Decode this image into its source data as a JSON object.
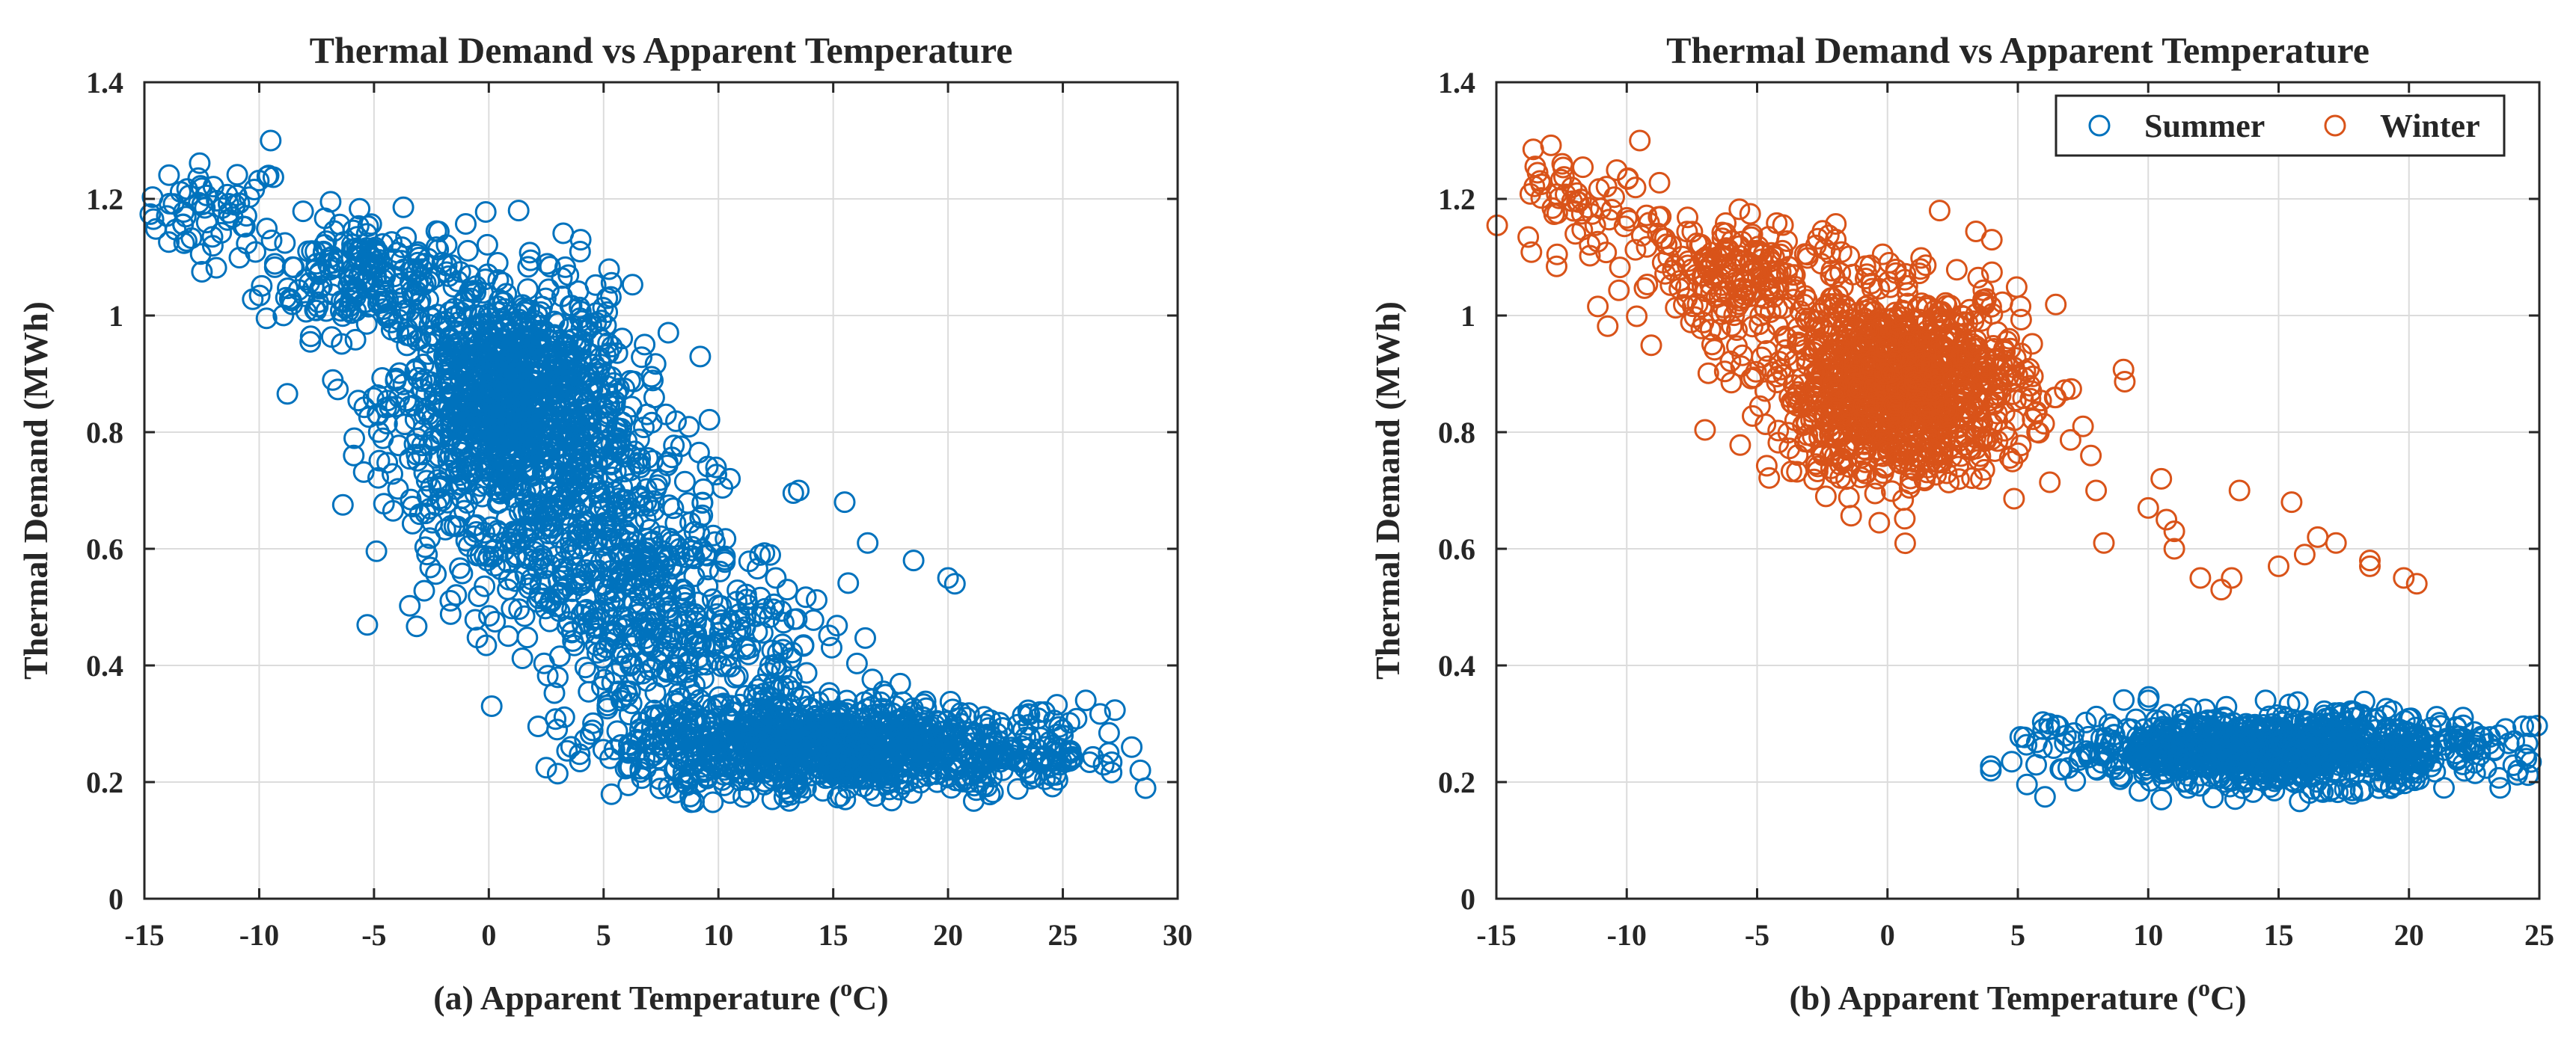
{
  "chart_data": [
    {
      "id": "a",
      "type": "scatter",
      "title": "Thermal Demand vs Apparent Temperature",
      "xlabel": "(a) Apparent Temperature (",
      "xlabel_superscript": "o",
      "xlabel_suffix": "C)",
      "ylabel": "Thermal Demand (MWh)",
      "xlim": [
        -15,
        30
      ],
      "ylim": [
        0,
        1.4
      ],
      "xticks": [
        -15,
        -10,
        -5,
        0,
        5,
        10,
        15,
        20,
        25,
        30
      ],
      "xtick_labels": [
        "-15",
        "-10",
        "-5",
        "0",
        "5",
        "10",
        "15",
        "20",
        "25",
        "30"
      ],
      "yticks": [
        0,
        0.2,
        0.4,
        0.6,
        0.8,
        1.0,
        1.2,
        1.4
      ],
      "ytick_labels": [
        "0",
        "0.2",
        "0.4",
        "0.6",
        "0.8",
        "1",
        "1.2",
        "1.4"
      ],
      "grid": true,
      "legend": null,
      "marker": "open-circle",
      "series": [
        {
          "color": "#0072BD",
          "clusters": [
            {
              "n": 60,
              "cx": -12.0,
              "cy": 1.18,
              "sx": 1.6,
              "sy": 0.04
            },
            {
              "n": 200,
              "cx": -5.5,
              "cy": 1.07,
              "sx": 2.2,
              "sy": 0.05
            },
            {
              "n": 1100,
              "cx": 1.0,
              "cy": 0.85,
              "sx": 2.6,
              "sy": 0.1
            },
            {
              "n": 380,
              "cx": 4.0,
              "cy": 0.62,
              "sx": 2.8,
              "sy": 0.1
            },
            {
              "n": 300,
              "cx": 8.5,
              "cy": 0.45,
              "sx": 3.0,
              "sy": 0.09
            },
            {
              "n": 1000,
              "cx": 14.5,
              "cy": 0.26,
              "sx": 4.2,
              "sy": 0.04
            },
            {
              "n": 80,
              "cx": 23.5,
              "cy": 0.25,
              "sx": 1.6,
              "sy": 0.035
            }
          ],
          "points": [
            {
              "x": -9.5,
              "y": 1.3
            },
            {
              "x": 1.3,
              "y": 1.18
            },
            {
              "x": 4.0,
              "y": 1.13
            },
            {
              "x": 10.5,
              "y": 0.72
            },
            {
              "x": 13.5,
              "y": 0.7
            },
            {
              "x": 15.5,
              "y": 0.68
            },
            {
              "x": 16.5,
              "y": 0.61
            },
            {
              "x": 18.5,
              "y": 0.58
            },
            {
              "x": 20.0,
              "y": 0.55
            },
            {
              "x": 20.3,
              "y": 0.54
            },
            {
              "x": 12.5,
              "y": 0.55
            },
            {
              "x": 13.0,
              "y": 0.53
            },
            {
              "x": 26.0,
              "y": 0.34
            },
            {
              "x": 27.0,
              "y": 0.25
            },
            {
              "x": 28.0,
              "y": 0.26
            },
            {
              "x": 24.0,
              "y": 0.32
            },
            {
              "x": 25.0,
              "y": 0.28
            }
          ]
        }
      ]
    },
    {
      "id": "b",
      "type": "scatter",
      "title": "Thermal Demand vs Apparent Temperature",
      "xlabel": "(b) Apparent Temperature (",
      "xlabel_superscript": "o",
      "xlabel_suffix": "C)",
      "ylabel": "Thermal Demand (MWh)",
      "xlim": [
        -15,
        25
      ],
      "ylim": [
        0,
        1.4
      ],
      "xticks": [
        -15,
        -10,
        -5,
        0,
        5,
        10,
        15,
        20,
        25
      ],
      "xtick_labels": [
        "-15",
        "-10",
        "-5",
        "0",
        "5",
        "10",
        "15",
        "20",
        "25"
      ],
      "yticks": [
        0,
        0.2,
        0.4,
        0.6,
        0.8,
        1.0,
        1.2,
        1.4
      ],
      "ytick_labels": [
        "0",
        "0.2",
        "0.4",
        "0.6",
        "0.8",
        "1",
        "1.2",
        "1.4"
      ],
      "grid": true,
      "legend": "top-right",
      "marker": "open-circle",
      "series": [
        {
          "name": "Summer",
          "color": "#0072BD",
          "clusters": [
            {
              "n": 1000,
              "cx": 15.0,
              "cy": 0.255,
              "sx": 4.0,
              "sy": 0.03
            }
          ],
          "points": [
            {
              "x": 6.2,
              "y": 0.3
            },
            {
              "x": 10.5,
              "y": 0.17
            },
            {
              "x": 23.5,
              "y": 0.19
            },
            {
              "x": 24.5,
              "y": 0.24
            },
            {
              "x": 10.0,
              "y": 0.34
            },
            {
              "x": 14.5,
              "y": 0.34
            }
          ]
        },
        {
          "name": "Winter",
          "color": "#D95319",
          "clusters": [
            {
              "n": 60,
              "cx": -12.0,
              "cy": 1.18,
              "sx": 1.6,
              "sy": 0.04
            },
            {
              "n": 200,
              "cx": -5.5,
              "cy": 1.07,
              "sx": 2.2,
              "sy": 0.05
            },
            {
              "n": 1100,
              "cx": 0.5,
              "cy": 0.88,
              "sx": 2.4,
              "sy": 0.08
            }
          ],
          "points": [
            {
              "x": -9.5,
              "y": 1.3
            },
            {
              "x": 2.0,
              "y": 1.18
            },
            {
              "x": 4.0,
              "y": 1.13
            },
            {
              "x": 8.3,
              "y": 0.61
            },
            {
              "x": 10.0,
              "y": 0.67
            },
            {
              "x": 10.5,
              "y": 0.72
            },
            {
              "x": 10.7,
              "y": 0.65
            },
            {
              "x": 11.0,
              "y": 0.63
            },
            {
              "x": 11.0,
              "y": 0.6
            },
            {
              "x": 12.0,
              "y": 0.55
            },
            {
              "x": 12.8,
              "y": 0.53
            },
            {
              "x": 13.2,
              "y": 0.55
            },
            {
              "x": 13.5,
              "y": 0.7
            },
            {
              "x": 15.0,
              "y": 0.57
            },
            {
              "x": 15.5,
              "y": 0.68
            },
            {
              "x": 16.0,
              "y": 0.59
            },
            {
              "x": 16.5,
              "y": 0.62
            },
            {
              "x": 17.2,
              "y": 0.61
            },
            {
              "x": 18.5,
              "y": 0.58
            },
            {
              "x": 18.5,
              "y": 0.57
            },
            {
              "x": 19.8,
              "y": 0.55
            },
            {
              "x": 20.3,
              "y": 0.54
            },
            {
              "x": 8.0,
              "y": 0.7
            },
            {
              "x": 7.8,
              "y": 0.76
            },
            {
              "x": 7.5,
              "y": 0.81
            }
          ]
        }
      ]
    }
  ]
}
